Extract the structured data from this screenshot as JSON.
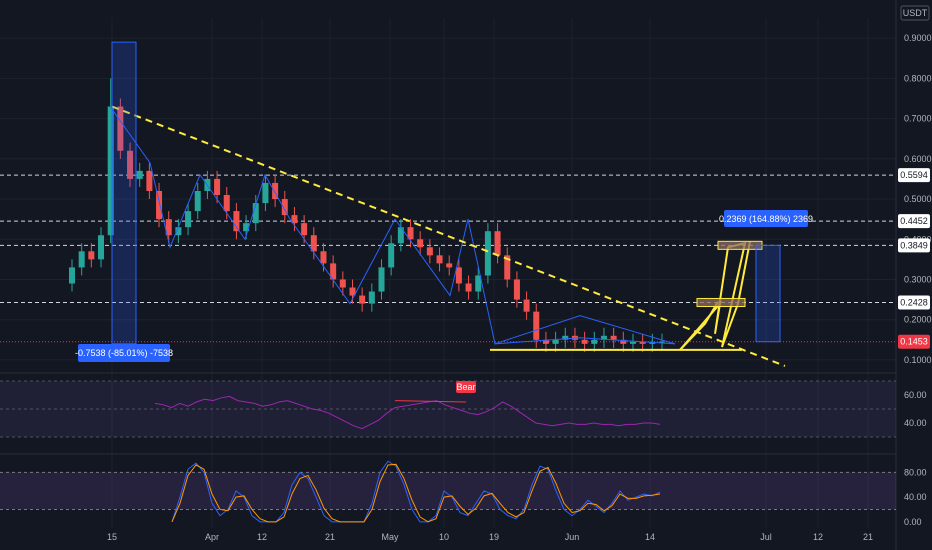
{
  "chart_data": [
    {
      "type": "candlestick",
      "pair": "USDT",
      "price_axis": {
        "ticks": [
          "0.9000",
          "0.8000",
          "0.7000",
          "0.6000",
          "0.5000",
          "0.4000",
          "0.3000",
          "0.2000",
          "0.1000"
        ],
        "levels": [
          {
            "label": "0.5594",
            "value": 0.5594
          },
          {
            "label": "0.4452",
            "value": 0.4452
          },
          {
            "label": "0.3849",
            "value": 0.3849
          },
          {
            "label": "0.2428",
            "value": 0.2428
          }
        ],
        "current_price": {
          "label": "0.1453",
          "value": 0.1453,
          "color": "#f23645"
        }
      },
      "time_axis": {
        "ticks": [
          "15",
          "Apr",
          "12",
          "21",
          "May",
          "10",
          "19",
          "Jun",
          "14",
          "Jul",
          "12",
          "21"
        ]
      },
      "drawdown_measure": {
        "label": "-0.7538 (-85.01%) -7538",
        "color": "#2962ff"
      },
      "projection_measure": {
        "label": "0.2369 (164.88%) 2369",
        "color": "#2962ff"
      },
      "close_series": [
        0.33,
        0.37,
        0.35,
        0.41,
        0.73,
        0.62,
        0.55,
        0.57,
        0.52,
        0.45,
        0.41,
        0.43,
        0.47,
        0.52,
        0.55,
        0.51,
        0.47,
        0.42,
        0.44,
        0.49,
        0.54,
        0.5,
        0.46,
        0.44,
        0.41,
        0.37,
        0.34,
        0.3,
        0.28,
        0.26,
        0.24,
        0.27,
        0.33,
        0.39,
        0.43,
        0.4,
        0.38,
        0.36,
        0.34,
        0.33,
        0.29,
        0.27,
        0.31,
        0.42,
        0.36,
        0.3,
        0.25,
        0.22,
        0.15,
        0.14,
        0.15,
        0.16,
        0.15,
        0.14,
        0.15,
        0.16,
        0.15,
        0.14,
        0.145,
        0.14,
        0.145,
        0.1453
      ],
      "pattern_colors": {
        "trendline": "#ffeb3b",
        "zigzag": "#2962ff",
        "up": "#26a69a",
        "down": "#ef5350"
      }
    },
    {
      "type": "line",
      "indicator": "RSI",
      "ticks": [
        "60.00",
        "40.00"
      ],
      "divergence_label": "Bear",
      "divergence_color": "#f23645",
      "values": [
        54,
        53,
        51,
        54,
        52,
        55,
        57,
        56,
        58,
        59,
        56,
        55,
        54,
        52,
        53,
        55,
        56,
        54,
        52,
        50,
        49,
        47,
        44,
        41,
        38,
        36,
        39,
        42,
        47,
        51,
        52,
        53,
        54,
        55,
        56,
        53,
        51,
        49,
        47,
        46,
        48,
        51,
        55,
        52,
        48,
        44,
        40,
        39,
        38,
        39,
        40,
        39,
        39,
        40,
        39,
        39,
        38,
        39,
        39,
        40,
        40,
        39
      ],
      "color": "#9c27b0"
    },
    {
      "type": "line",
      "indicator": "Stochastic RSI",
      "ticks": [
        "80.00",
        "40.00",
        "0.00"
      ],
      "series": [
        {
          "color": "#2962ff",
          "values": [
            0,
            40,
            85,
            95,
            80,
            30,
            10,
            20,
            50,
            40,
            10,
            0,
            0,
            0,
            15,
            60,
            80,
            70,
            40,
            10,
            0,
            0,
            0,
            0,
            0,
            30,
            80,
            98,
            90,
            60,
            20,
            0,
            0,
            10,
            50,
            40,
            15,
            10,
            30,
            50,
            45,
            20,
            10,
            5,
            20,
            60,
            90,
            85,
            50,
            20,
            10,
            20,
            35,
            25,
            15,
            30,
            50,
            35,
            40,
            45,
            42,
            48
          ]
        },
        {
          "color": "#ff9800",
          "values": [
            0,
            30,
            75,
            92,
            85,
            45,
            20,
            18,
            40,
            42,
            20,
            5,
            0,
            0,
            8,
            45,
            70,
            75,
            52,
            22,
            5,
            0,
            0,
            0,
            0,
            20,
            65,
            92,
            93,
            70,
            35,
            8,
            0,
            5,
            40,
            42,
            25,
            12,
            22,
            42,
            46,
            30,
            15,
            8,
            15,
            50,
            82,
            88,
            62,
            30,
            15,
            18,
            30,
            28,
            18,
            26,
            45,
            38,
            38,
            42,
            43,
            45
          ]
        }
      ]
    }
  ]
}
